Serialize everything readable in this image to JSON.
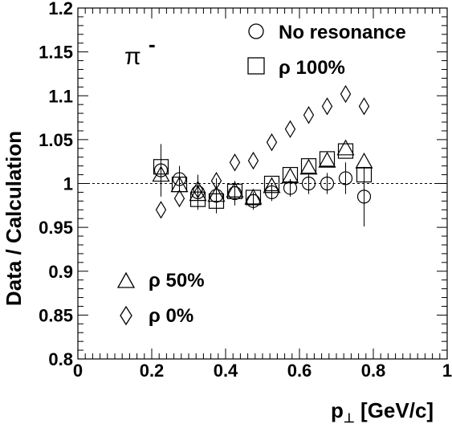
{
  "chart_data": {
    "type": "scatter",
    "xlabel": "p⊥ [GeV/c]",
    "ylabel": "Data / Calculation",
    "xlim": [
      0,
      1
    ],
    "ylim": [
      0.8,
      1.2
    ],
    "x_ticks": [
      "0",
      "0.2",
      "0.4",
      "0.6",
      "0.8",
      "1"
    ],
    "y_ticks": [
      "0.8",
      "0.85",
      "0.9",
      "0.95",
      "1",
      "1.05",
      "1.1",
      "1.15",
      "1.2"
    ],
    "x_tick_values": [
      0,
      0.2,
      0.4,
      0.6,
      0.8,
      1.0
    ],
    "y_tick_values": [
      0.8,
      0.85,
      0.9,
      0.95,
      1.0,
      1.05,
      1.1,
      1.15,
      1.2
    ],
    "reference_line": 1.0,
    "annotation": "π",
    "annotation_sup": "-",
    "legend_placement": [
      "top-right",
      "bottom-left"
    ],
    "series": [
      {
        "name": "No resonance",
        "marker": "circle",
        "x": [
          0.225,
          0.275,
          0.325,
          0.375,
          0.425,
          0.475,
          0.525,
          0.575,
          0.625,
          0.675,
          0.725,
          0.775
        ],
        "y": [
          1.015,
          1.005,
          0.99,
          0.986,
          0.989,
          0.98,
          0.99,
          0.995,
          1.0,
          1.0,
          1.006,
          0.985
        ],
        "err": [
          0.03,
          0.015,
          0.02,
          0.02,
          0.014,
          0.01,
          0.01,
          0.01,
          0.012,
          0.012,
          0.018,
          0.034
        ]
      },
      {
        "name": "ρ 100%",
        "marker": "square",
        "x": [
          0.225,
          0.275,
          0.325,
          0.375,
          0.425,
          0.475,
          0.525,
          0.575,
          0.625,
          0.675,
          0.725,
          0.775
        ],
        "y": [
          1.019,
          0.999,
          0.982,
          0.98,
          0.991,
          0.984,
          1.0,
          1.01,
          1.02,
          1.028,
          1.037,
          1.01
        ],
        "err": [
          0.0,
          0.0,
          0.0,
          0.0,
          0.0,
          0.0,
          0.0,
          0.0,
          0.0,
          0.0,
          0.0,
          0.0
        ]
      },
      {
        "name": "ρ 50%",
        "marker": "triangle",
        "x": [
          0.225,
          0.275,
          0.325,
          0.375,
          0.425,
          0.475,
          0.525,
          0.575,
          0.625,
          0.675,
          0.725,
          0.775
        ],
        "y": [
          1.01,
          0.998,
          0.988,
          0.987,
          0.992,
          0.984,
          0.997,
          1.008,
          1.018,
          1.026,
          1.04,
          1.025
        ],
        "err": [
          0.0,
          0.0,
          0.0,
          0.0,
          0.0,
          0.0,
          0.0,
          0.0,
          0.0,
          0.0,
          0.0,
          0.0
        ]
      },
      {
        "name": "ρ 0%",
        "marker": "diamond",
        "x": [
          0.225,
          0.275,
          0.325,
          0.375,
          0.425,
          0.475,
          0.525,
          0.575,
          0.625,
          0.675,
          0.725,
          0.775
        ],
        "y": [
          0.97,
          0.983,
          0.993,
          1.003,
          1.024,
          1.026,
          1.047,
          1.062,
          1.078,
          1.088,
          1.102,
          1.088
        ],
        "err": [
          0.0,
          0.0,
          0.0,
          0.0,
          0.0,
          0.0,
          0.0,
          0.0,
          0.0,
          0.0,
          0.0,
          0.0
        ]
      }
    ]
  }
}
